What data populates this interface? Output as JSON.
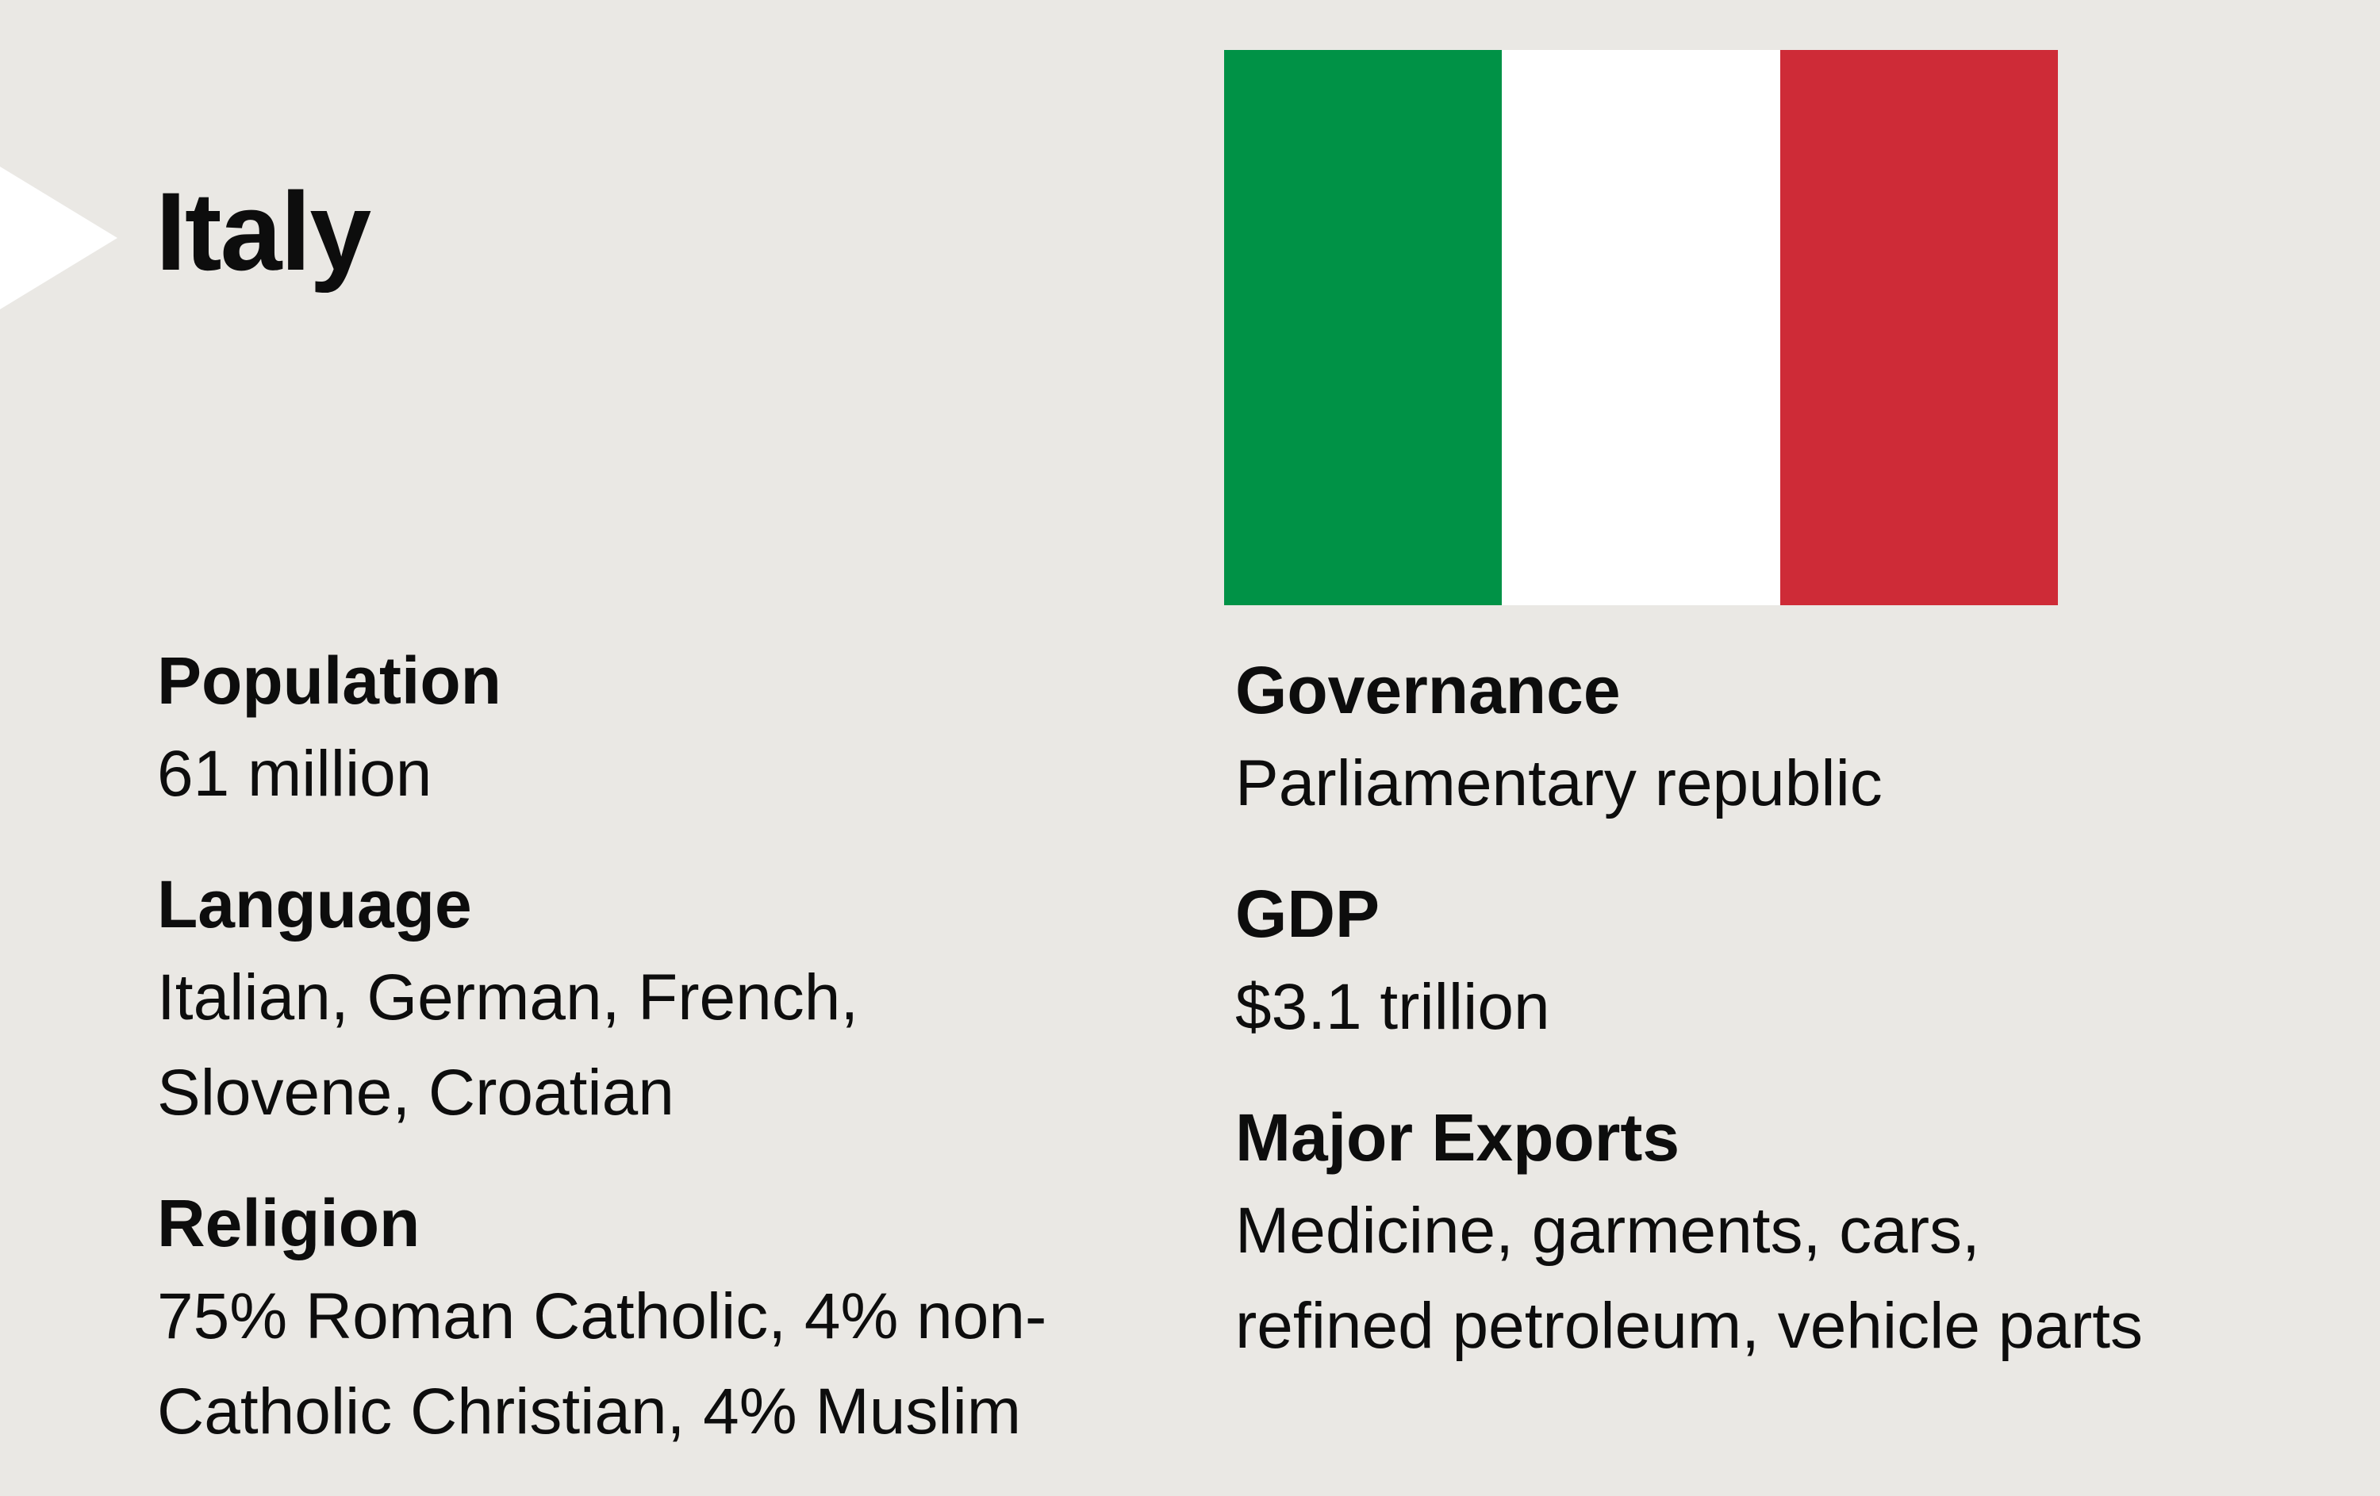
{
  "title": "Italy",
  "flag": {
    "colors": [
      "#009246",
      "#FFFFFF",
      "#CE2B37"
    ]
  },
  "left_facts": [
    {
      "label": "Population",
      "lines": [
        "61 million"
      ]
    },
    {
      "label": "Language",
      "lines": [
        "Italian, German, French,",
        "Slovene, Croatian"
      ]
    },
    {
      "label": "Religion",
      "lines": [
        "75% Roman Catholic, 4% non-",
        "Catholic Christian, 4% Muslim"
      ]
    }
  ],
  "right_facts": [
    {
      "label": "Governance",
      "lines": [
        "Parliamentary republic"
      ]
    },
    {
      "label": "GDP",
      "lines": [
        "$3.1 trillion"
      ]
    },
    {
      "label": "Major Exports",
      "lines": [
        "Medicine, garments, cars,",
        "refined petroleum, vehicle parts"
      ]
    }
  ]
}
